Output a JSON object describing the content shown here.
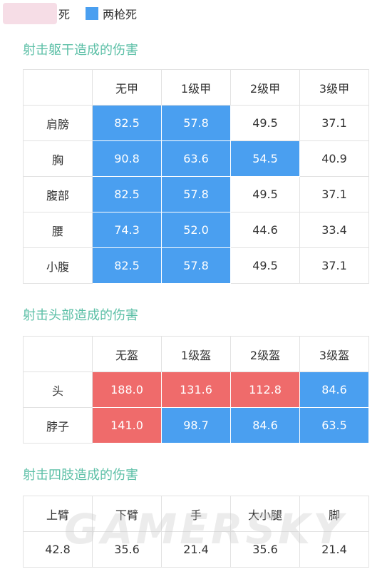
{
  "legend": [
    {
      "label": "死",
      "color": "#ef6b6b"
    },
    {
      "label": "两枪死",
      "color": "#4a9ff0"
    }
  ],
  "watermark": "GAMERSKY",
  "tables": [
    {
      "title": "射击躯干造成的伤害",
      "header": [
        "无甲",
        "1级甲",
        "2级甲",
        "3级甲"
      ],
      "rows": [
        {
          "label": "肩膀",
          "cells": [
            "82.5",
            "57.8",
            "49.5",
            "37.1"
          ],
          "fills": [
            "#4a9ff0",
            "#4a9ff0",
            "#ffffff",
            "#ffffff"
          ]
        },
        {
          "label": "胸",
          "cells": [
            "90.8",
            "63.6",
            "54.5",
            "40.9"
          ],
          "fills": [
            "#4a9ff0",
            "#4a9ff0",
            "#4a9ff0",
            "#ffffff"
          ]
        },
        {
          "label": "腹部",
          "cells": [
            "82.5",
            "57.8",
            "49.5",
            "37.1"
          ],
          "fills": [
            "#4a9ff0",
            "#4a9ff0",
            "#ffffff",
            "#ffffff"
          ]
        },
        {
          "label": "腰",
          "cells": [
            "74.3",
            "52.0",
            "44.6",
            "33.4"
          ],
          "fills": [
            "#4a9ff0",
            "#4a9ff0",
            "#ffffff",
            "#ffffff"
          ]
        },
        {
          "label": "小腹",
          "cells": [
            "82.5",
            "57.8",
            "49.5",
            "37.1"
          ],
          "fills": [
            "#4a9ff0",
            "#4a9ff0",
            "#ffffff",
            "#ffffff"
          ]
        }
      ]
    },
    {
      "title": "射击头部造成的伤害",
      "header": [
        "无盔",
        "1级盔",
        "2级盔",
        "3级盔"
      ],
      "rows": [
        {
          "label": "头",
          "cells": [
            "188.0",
            "131.6",
            "112.8",
            "84.6"
          ],
          "fills": [
            "#ef6b6b",
            "#ef6b6b",
            "#ef6b6b",
            "#4a9ff0"
          ]
        },
        {
          "label": "脖子",
          "cells": [
            "141.0",
            "98.7",
            "84.6",
            "63.5"
          ],
          "fills": [
            "#ef6b6b",
            "#4a9ff0",
            "#4a9ff0",
            "#4a9ff0"
          ]
        }
      ]
    },
    {
      "title": "射击四肢造成的伤害",
      "header": [
        "上臂",
        "下臂",
        "手",
        "大小腿",
        "脚"
      ],
      "rows": [
        {
          "cells": [
            "42.8",
            "35.6",
            "21.4",
            "35.6",
            "21.4"
          ],
          "fills": [
            "#ffffff",
            "#ffffff",
            "#ffffff",
            "#ffffff",
            "#ffffff"
          ]
        }
      ]
    }
  ]
}
